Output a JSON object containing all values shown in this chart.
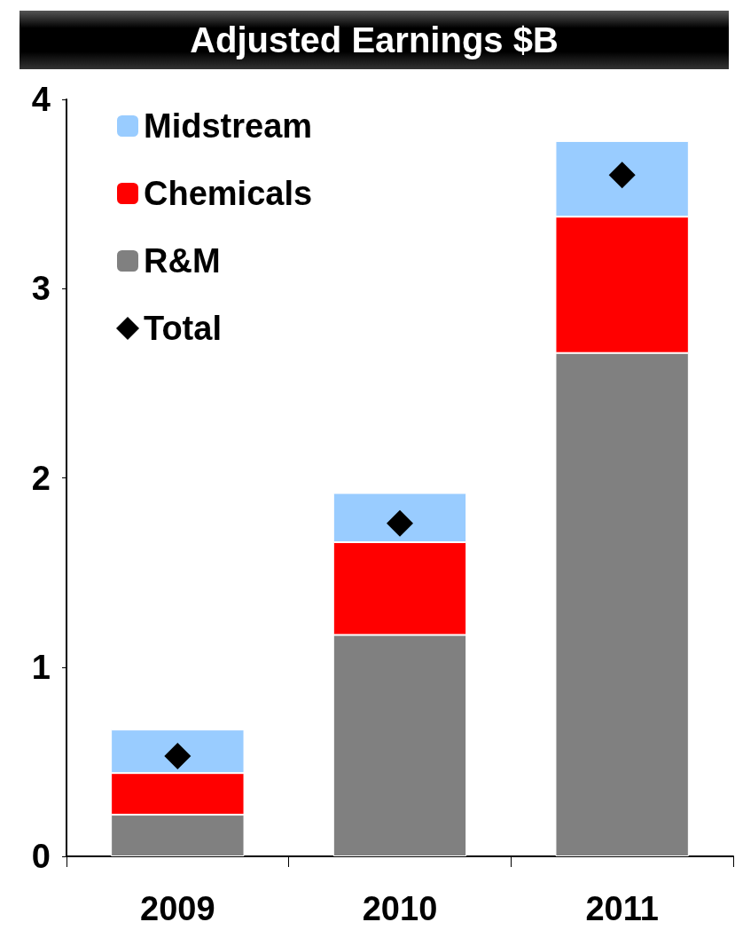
{
  "chart_data": {
    "type": "bar",
    "title": "Adjusted Earnings $B",
    "stacked": true,
    "categories": [
      "2009",
      "2010",
      "2011"
    ],
    "series": [
      {
        "name": "R&M",
        "color": "#808080",
        "values": [
          0.22,
          1.17,
          2.66
        ]
      },
      {
        "name": "Chemicals",
        "color": "#ff0000",
        "values": [
          0.22,
          0.49,
          0.72
        ]
      },
      {
        "name": "Midstream",
        "color": "#99ccff",
        "values": [
          0.23,
          0.26,
          0.4
        ]
      },
      {
        "name": "Total",
        "type": "scatter",
        "marker": "diamond",
        "color": "#000000",
        "values": [
          0.53,
          1.76,
          3.6
        ]
      }
    ],
    "ylim": [
      0,
      4
    ],
    "yticks": [
      0,
      1,
      2,
      3,
      4
    ],
    "grid": false,
    "legend": "top left"
  }
}
